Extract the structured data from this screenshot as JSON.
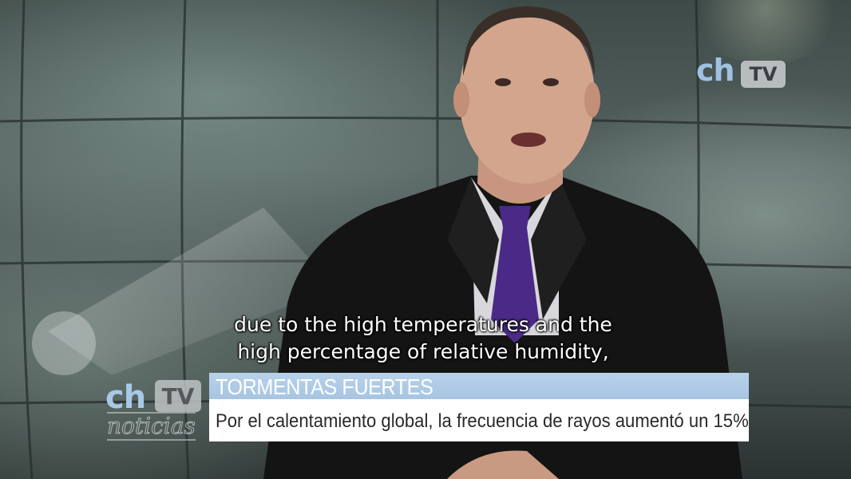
{
  "video": {
    "description_icon": "tv-studio-broadcast-frame"
  },
  "watermark": {
    "ch": "ch",
    "tv": "TV"
  },
  "subtitle": {
    "line1": "due to the high temperatures and the",
    "line2": "high percentage of relative humidity,"
  },
  "news_logo": {
    "ch": "ch",
    "tv": "TV",
    "noticias": "noticias"
  },
  "lower_third": {
    "headline": "TORMENTAS FUERTES",
    "caption": "Por el calentamiento global, la frecuencia de rayos aumentó un 15%"
  },
  "colors": {
    "brand_blue": "#a8c9e6",
    "headline_bar": "#b9d2ea",
    "caption_bar": "#ffffff"
  }
}
